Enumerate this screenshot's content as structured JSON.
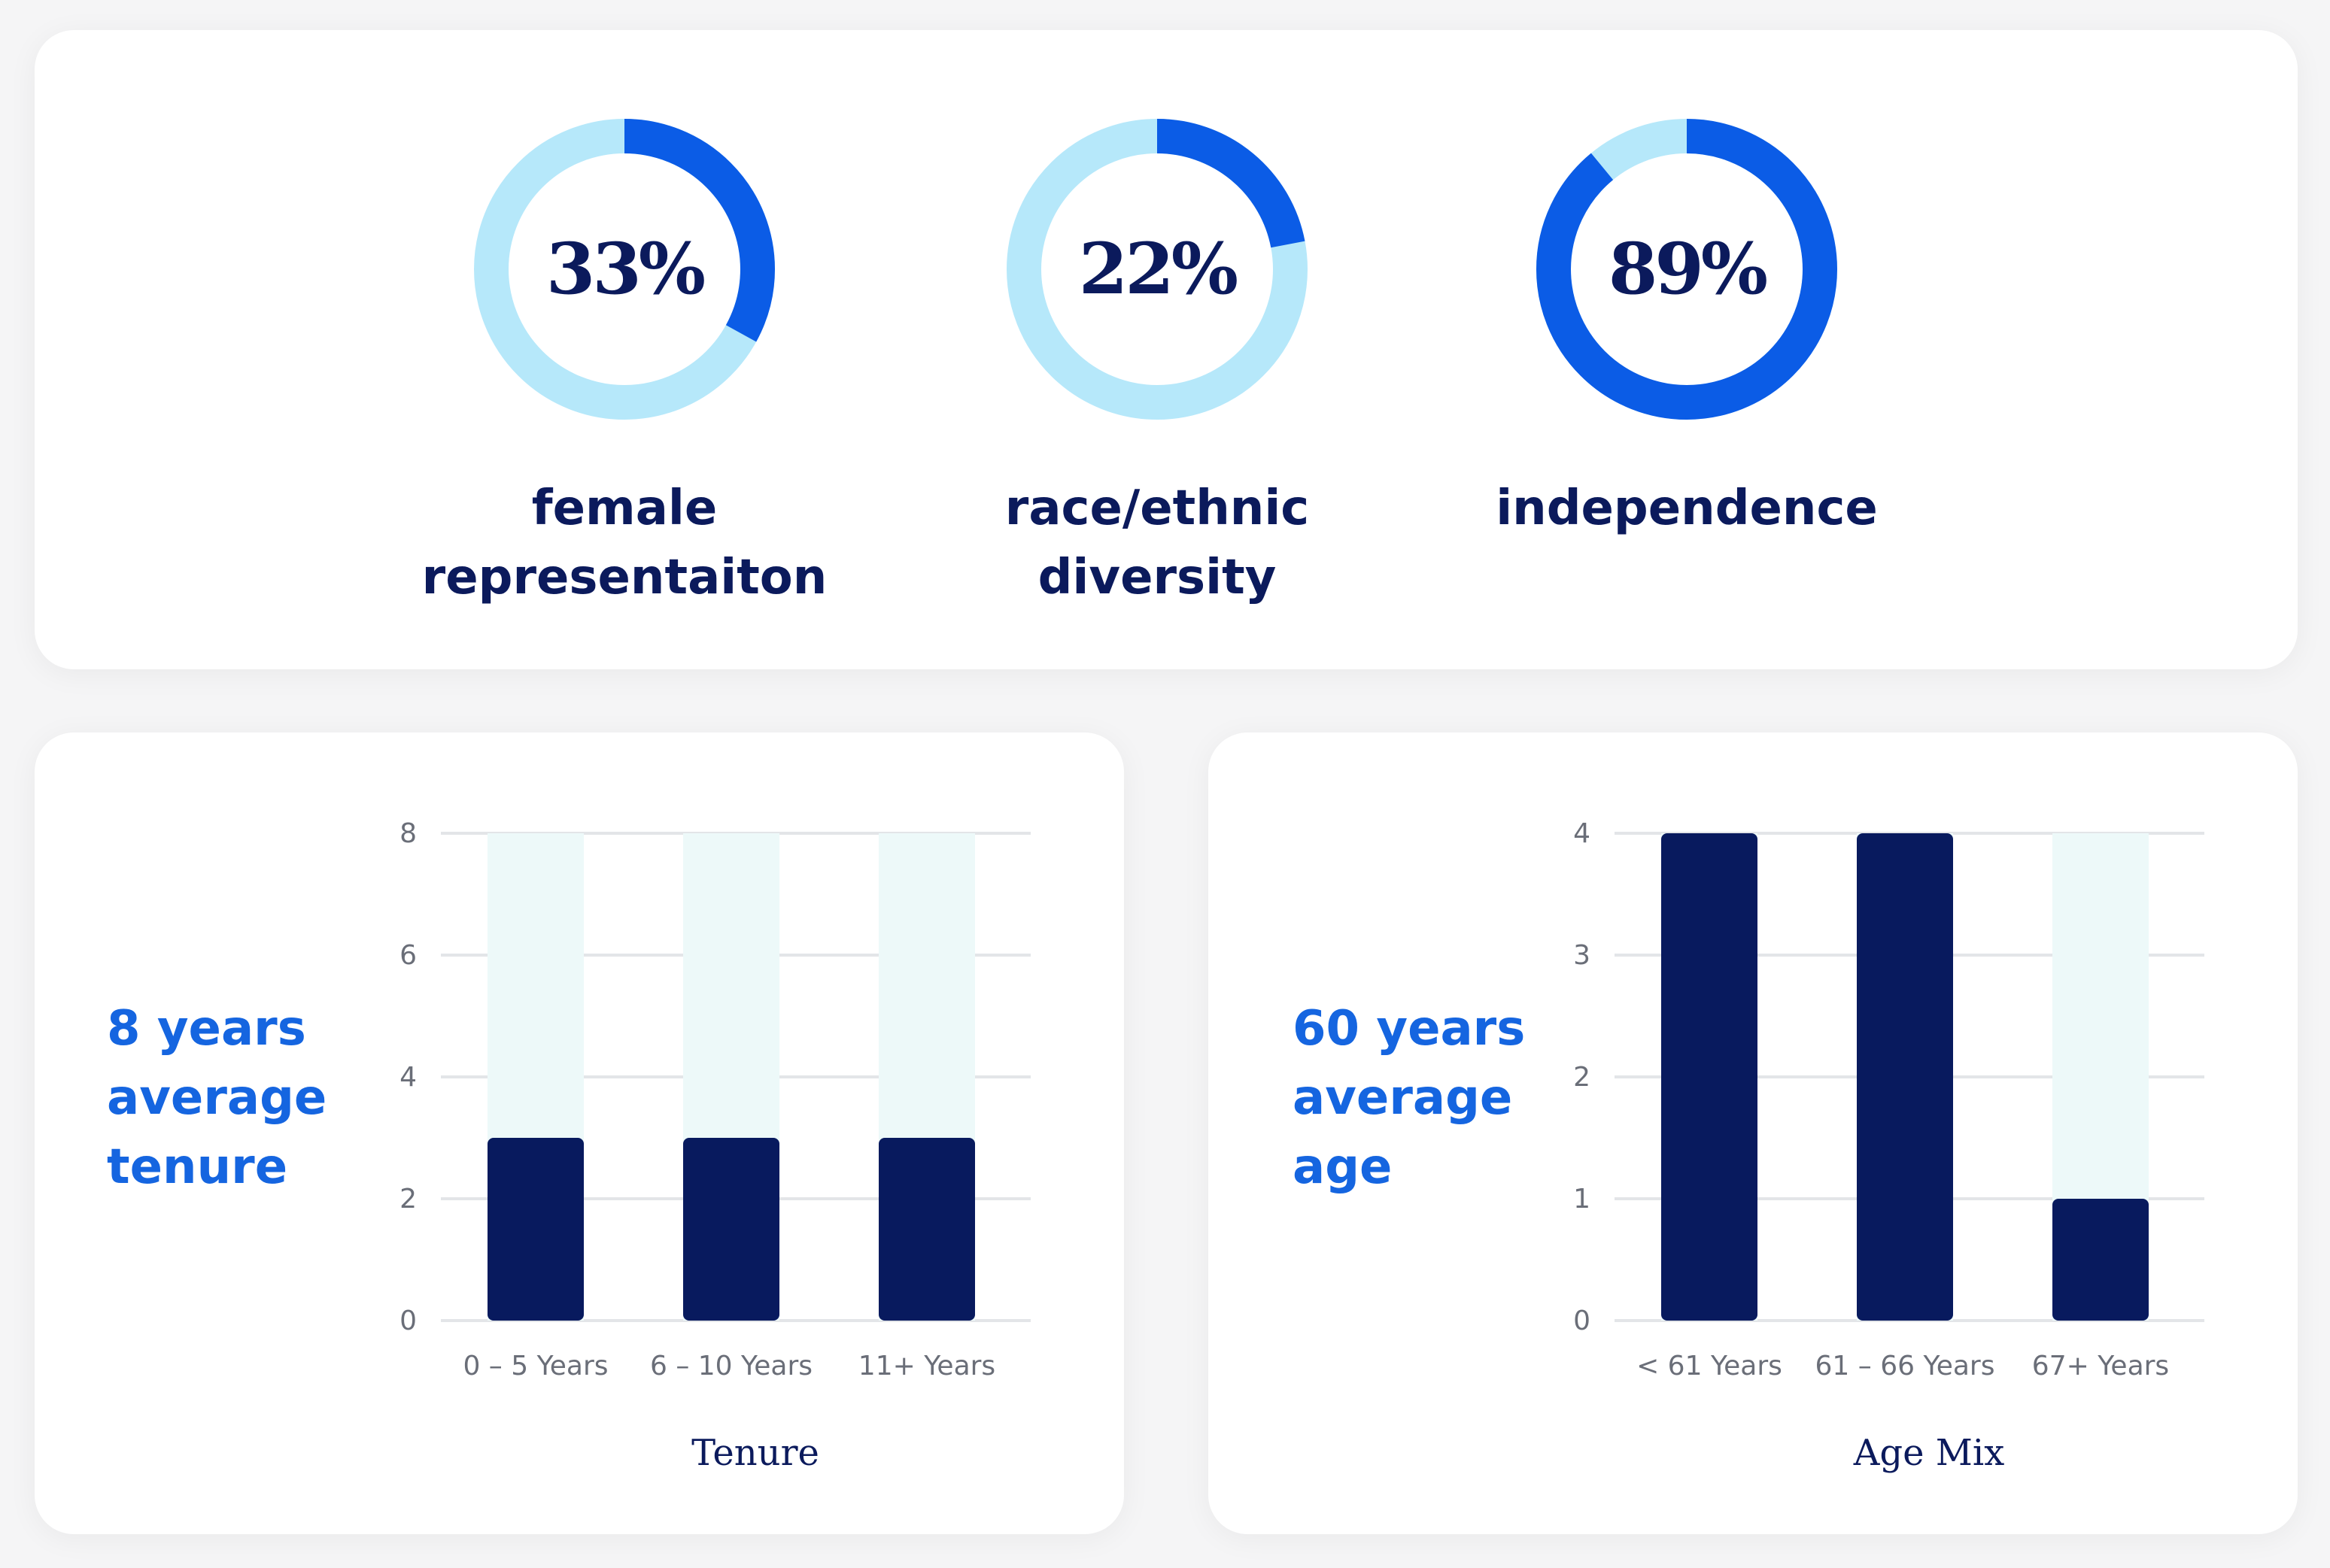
{
  "colors": {
    "donut_track": "#b6e8fa",
    "donut_fill": "#0b5ce6",
    "bar": "#081a5e",
    "bar_bg": "#edf9f9",
    "grid": "#e3e5e8",
    "kpi": "#1565e0"
  },
  "metrics": [
    {
      "value": "33%",
      "fraction": 0.33,
      "label": "female\nrepresentaiton"
    },
    {
      "value": "22%",
      "fraction": 0.22,
      "label": "race/ethnic\ndiversity"
    },
    {
      "value": "89%",
      "fraction": 0.89,
      "label": "independence"
    }
  ],
  "tenure": {
    "headline": "8 years\naverage\ntenure"
  },
  "age": {
    "headline": "60 years\naverage\nage"
  },
  "chart_data": [
    {
      "type": "bar",
      "title": "",
      "xlabel": "Tenure",
      "ylabel": "",
      "categories": [
        "0 – 5 Years",
        "6 – 10 Years",
        "11+ Years"
      ],
      "values": [
        3,
        3,
        3
      ],
      "ylim": [
        0,
        8
      ],
      "yticks": [
        "0",
        "2",
        "4",
        "6",
        "8"
      ],
      "grid": true
    },
    {
      "type": "bar",
      "title": "",
      "xlabel": "Age Mix",
      "ylabel": "",
      "categories": [
        "< 61 Years",
        "61 – 66 Years",
        "67+ Years"
      ],
      "values": [
        4,
        4,
        1
      ],
      "ylim": [
        0,
        4
      ],
      "yticks": [
        "0",
        "1",
        "2",
        "3",
        "4"
      ],
      "grid": true
    }
  ]
}
